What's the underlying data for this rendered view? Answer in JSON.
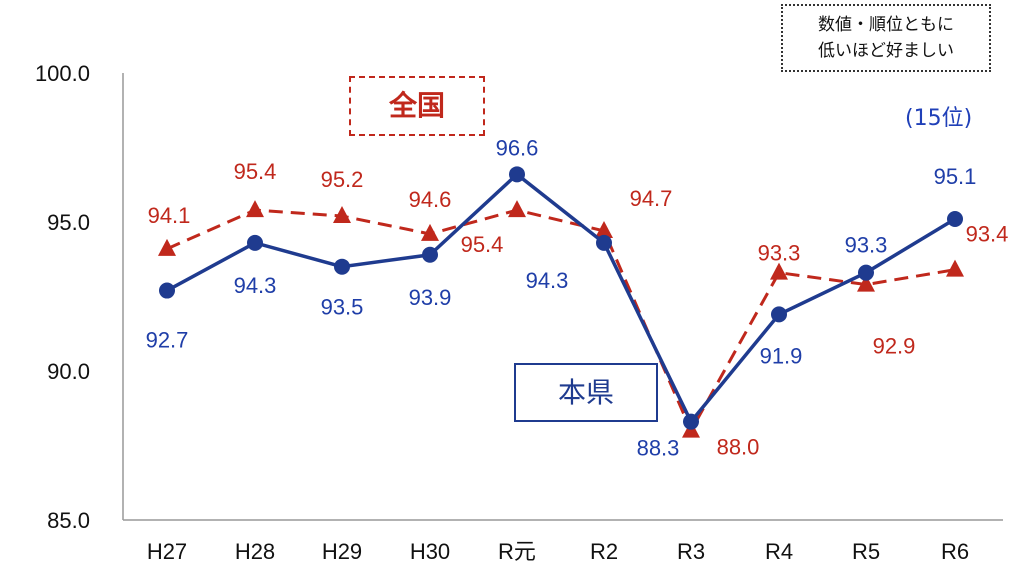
{
  "chart_data": {
    "type": "line",
    "categories": [
      "H27",
      "H28",
      "H29",
      "H30",
      "R元",
      "R2",
      "R3",
      "R4",
      "R5",
      "R6"
    ],
    "series": [
      {
        "name": "本県",
        "values": [
          92.7,
          94.3,
          93.5,
          93.9,
          96.6,
          94.3,
          88.3,
          91.9,
          93.3,
          95.1
        ],
        "color": "#1f3b8f",
        "style": "solid",
        "marker": "circle"
      },
      {
        "name": "全国",
        "values": [
          94.1,
          95.4,
          95.2,
          94.6,
          95.4,
          94.7,
          88.0,
          93.3,
          92.9,
          93.4
        ],
        "color": "#c0281c",
        "style": "dashed",
        "marker": "triangle"
      }
    ],
    "ylim": [
      85.0,
      100.0
    ],
    "yticks": [
      "85.0",
      "90.0",
      "95.0",
      "100.0"
    ],
    "grid": false,
    "annotations": {
      "note": [
        "数値・順位ともに",
        "低いほど好ましい"
      ],
      "rank": "(15位)"
    }
  }
}
